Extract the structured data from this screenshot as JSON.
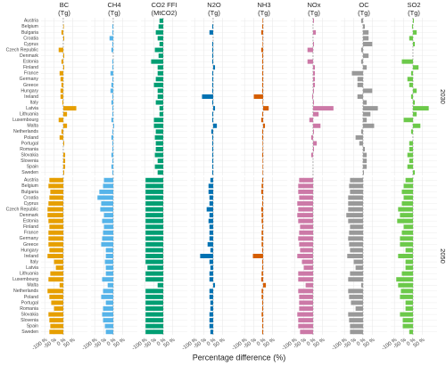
{
  "chart_data": {
    "type": "bar",
    "orientation": "horizontal",
    "x_label": "Percentage difference (%)",
    "categories": [
      "Austria",
      "Belgium",
      "Bulgaria",
      "Croatia",
      "Cyprus",
      "Czech Republic",
      "Denmark",
      "Estonia",
      "Finland",
      "France",
      "Germany",
      "Greece",
      "Hungary",
      "Ireland",
      "Italy",
      "Latvia",
      "Lithuania",
      "Luxembourg",
      "Malta",
      "Netherlands",
      "Poland",
      "Portugal",
      "Romania",
      "Slovakia",
      "Slovenia",
      "Spain",
      "Sweden"
    ],
    "xlim": [
      -120,
      130
    ],
    "xticks": [
      {
        "value": -100,
        "label": "-100 %"
      },
      {
        "value": -50,
        "label": "-50 %"
      },
      {
        "value": 0,
        "label": "0 %"
      },
      {
        "value": 50,
        "label": "50 %"
      }
    ],
    "grid": true,
    "columns": [
      {
        "name": "BC",
        "unit": "(Tg)",
        "color": "#e69f00"
      },
      {
        "name": "CH4",
        "unit": "(Tg)",
        "color": "#56b4e9"
      },
      {
        "name": "CO2 FFI",
        "unit": "(MtCO2)",
        "color": "#009e73"
      },
      {
        "name": "N2O",
        "unit": "(Tg)",
        "color": "#0072b2"
      },
      {
        "name": "NH3",
        "unit": "(Tg)",
        "color": "#d55e00"
      },
      {
        "name": "NOx",
        "unit": "(Tg)",
        "color": "#cc79a7"
      },
      {
        "name": "OC",
        "unit": "(Tg)",
        "color": "#999999"
      },
      {
        "name": "SO2",
        "unit": "(Tg)",
        "color": "#6cc94a"
      }
    ],
    "rows": [
      {
        "label": "2030",
        "values": [
          [
            0,
            3,
            -10,
            5,
            0,
            -25,
            5,
            -10,
            5,
            -20,
            -15,
            -10,
            -15,
            -15,
            -5,
            70,
            20,
            -25,
            20,
            -10,
            -20,
            5,
            0,
            10,
            10,
            10,
            5
          ],
          [
            0,
            -5,
            -5,
            -20,
            -5,
            -10,
            0,
            -5,
            -5,
            -15,
            -5,
            -10,
            -15,
            -5,
            -10,
            -5,
            -5,
            -10,
            5,
            -5,
            -10,
            -5,
            -5,
            -10,
            -5,
            -10,
            -5
          ],
          [
            -20,
            -25,
            -40,
            -30,
            -20,
            -45,
            -25,
            -65,
            -30,
            -30,
            -40,
            -50,
            -30,
            -30,
            -40,
            -20,
            -20,
            -50,
            -50,
            -40,
            -45,
            -40,
            -40,
            -45,
            -30,
            -45,
            -30
          ],
          [
            0,
            -5,
            -20,
            0,
            -5,
            -5,
            -5,
            -5,
            10,
            -5,
            -5,
            -5,
            -5,
            -60,
            -5,
            10,
            -5,
            -5,
            20,
            -10,
            -5,
            -5,
            -5,
            -5,
            -5,
            -5,
            -5
          ],
          [
            -3,
            -5,
            -10,
            -3,
            -3,
            -10,
            -5,
            -5,
            -5,
            -5,
            -5,
            -5,
            -5,
            -50,
            -3,
            30,
            -5,
            -10,
            10,
            -5,
            -5,
            -3,
            -3,
            -5,
            -3,
            -3,
            -3
          ],
          [
            5,
            0,
            15,
            0,
            5,
            -30,
            0,
            -30,
            10,
            10,
            10,
            10,
            5,
            -5,
            5,
            110,
            30,
            -20,
            40,
            5,
            -10,
            20,
            5,
            -10,
            0,
            0,
            0
          ],
          [
            -10,
            10,
            30,
            30,
            50,
            -10,
            30,
            -10,
            20,
            -60,
            -30,
            -30,
            50,
            -30,
            20,
            80,
            40,
            20,
            60,
            -10,
            -40,
            -20,
            10,
            20,
            20,
            20,
            5
          ],
          [
            5,
            -5,
            20,
            -20,
            10,
            0,
            0,
            -60,
            30,
            -10,
            -30,
            -20,
            20,
            -10,
            10,
            85,
            20,
            -50,
            40,
            -10,
            0,
            -20,
            -20,
            -30,
            -20,
            -30,
            10
          ]
        ]
      },
      {
        "label": "2050",
        "values": [
          [
            -75,
            -80,
            -70,
            -75,
            -80,
            -85,
            -85,
            -80,
            -75,
            -80,
            -80,
            -80,
            -75,
            -85,
            -50,
            -40,
            -70,
            -80,
            -20,
            -85,
            -75,
            -65,
            -50,
            -80,
            -75,
            -70,
            -75
          ],
          [
            -50,
            -55,
            -75,
            -85,
            -65,
            -70,
            -50,
            -60,
            -50,
            -55,
            -60,
            -65,
            -40,
            -40,
            -45,
            -40,
            -40,
            -60,
            -30,
            -55,
            -65,
            -40,
            -55,
            -60,
            -55,
            -45,
            -40
          ],
          [
            -95,
            -95,
            -95,
            -95,
            -95,
            -95,
            -95,
            -95,
            -95,
            -95,
            -95,
            -95,
            -95,
            -95,
            -95,
            -85,
            -95,
            -95,
            -30,
            -95,
            -95,
            -95,
            -95,
            -95,
            -95,
            -95,
            -95
          ],
          [
            -15,
            -25,
            -25,
            -20,
            -20,
            -35,
            -20,
            -25,
            -20,
            -20,
            -20,
            -30,
            -15,
            -70,
            -20,
            -15,
            -20,
            -20,
            10,
            -20,
            -20,
            -15,
            -15,
            -20,
            -20,
            -20,
            -15
          ],
          [
            -5,
            -8,
            -10,
            -5,
            -5,
            -10,
            -8,
            -8,
            -5,
            -8,
            -8,
            -8,
            -5,
            -55,
            -5,
            -5,
            -8,
            -10,
            15,
            -8,
            -8,
            -5,
            -5,
            -8,
            -5,
            -5,
            -5
          ],
          [
            -75,
            -80,
            -80,
            -75,
            -85,
            -80,
            -85,
            -80,
            -70,
            -75,
            -80,
            -75,
            -70,
            -85,
            -60,
            -50,
            -80,
            -80,
            -40,
            -80,
            -75,
            -75,
            -75,
            -85,
            -80,
            -80,
            -70
          ],
          [
            -70,
            -75,
            -70,
            -80,
            -80,
            -80,
            -90,
            -80,
            -70,
            -75,
            -80,
            -75,
            -70,
            -85,
            -50,
            -40,
            -70,
            -80,
            -10,
            -80,
            -75,
            -65,
            -40,
            -80,
            -75,
            -70,
            -70
          ],
          [
            -40,
            -50,
            -60,
            -50,
            -60,
            -80,
            -70,
            -85,
            -50,
            -60,
            -70,
            -70,
            -40,
            -80,
            -40,
            -40,
            -60,
            -90,
            -80,
            -65,
            -70,
            -40,
            -40,
            -70,
            -55,
            -55,
            -20
          ]
        ]
      }
    ]
  }
}
